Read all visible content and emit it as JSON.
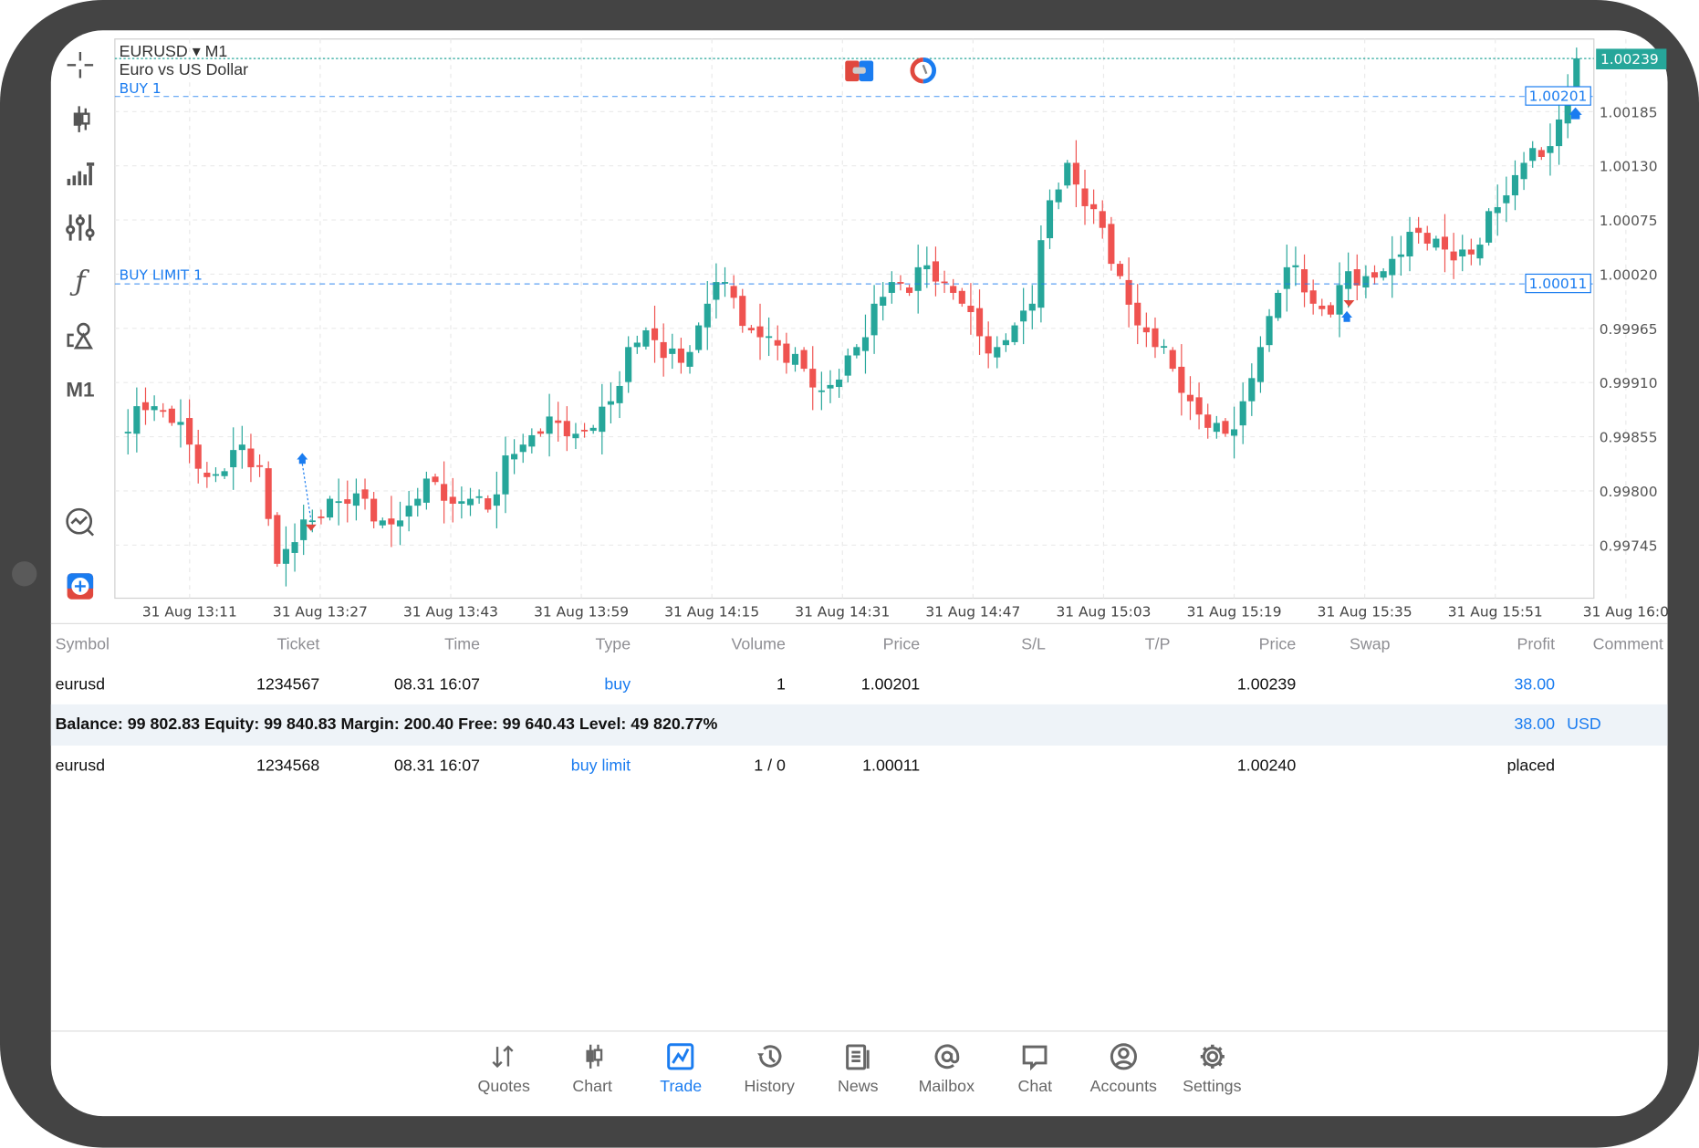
{
  "chart": {
    "symbol": "EURUSD",
    "timeframe": "M1",
    "description": "Euro vs US Dollar",
    "buy_label": "BUY 1",
    "buy_limit_label": "BUY LIMIT 1",
    "current_price": "1.00239",
    "buy_price": "1.00201",
    "buy_limit_price": "1.00011",
    "toolbar": {
      "timeframe_button": "M1"
    },
    "colors": {
      "bull": "#26a69a",
      "bear": "#ef5350",
      "order": "#1a7cf0"
    }
  },
  "chart_data": {
    "type": "candlestick",
    "title": "EURUSD, M1",
    "y_ticks": [
      "1.00185",
      "1.00130",
      "1.00075",
      "1.00020",
      "0.99965",
      "0.99910",
      "0.99855",
      "0.99800",
      "0.99745"
    ],
    "x_ticks": [
      "31 Aug 13:11",
      "31 Aug 13:27",
      "31 Aug 13:43",
      "31 Aug 13:59",
      "31 Aug 14:15",
      "31 Aug 14:31",
      "31 Aug 14:47",
      "31 Aug 15:03",
      "31 Aug 15:19",
      "31 Aug 15:35",
      "31 Aug 15:51",
      "31 Aug 16:0"
    ],
    "ylim": [
      0.997,
      1.0025
    ],
    "close_path": [
      0.99858,
      0.99886,
      0.99886,
      0.99869,
      0.99847,
      0.99814,
      0.9982,
      0.99847,
      0.99825,
      0.99726,
      0.99748,
      0.9977,
      0.99792,
      0.99787,
      0.99792,
      0.9977,
      0.9977,
      0.99792,
      0.99809,
      0.99787,
      0.99792,
      0.99781,
      0.99836,
      0.99847,
      0.99858,
      0.99869,
      0.99858,
      0.99864,
      0.99891,
      0.99946,
      0.99963,
      0.99935,
      0.9993,
      0.99968,
      1.00012,
      0.99996,
      0.99963,
      0.99957,
      0.9993,
      0.99924,
      0.99902,
      0.99913,
      0.99946,
      0.9999,
      1.00012,
      1.00001,
      1.00029,
      1.00012,
      0.9999,
      0.99957,
      0.99946,
      0.99968,
      0.9999,
      1.00095,
      1.00133,
      1.00089,
      1.00067,
      1.00018,
      0.99968,
      0.99946,
      0.99924,
      0.99891,
      0.99864,
      0.99858,
      0.99891,
      0.99946,
      1.00001,
      1.00029,
      0.9999,
      0.99979,
      1.00023,
      1.00018,
      1.00023,
      1.0004,
      1.00062,
      1.00056,
      1.00034,
      1.0004,
      1.00084,
      1.001,
      1.00133,
      1.00139,
      1.00177,
      1.00239
    ]
  },
  "table": {
    "headers": [
      "Symbol",
      "Ticket",
      "Time",
      "Type",
      "Volume",
      "Price",
      "S/L",
      "T/P",
      "Price",
      "Swap",
      "Profit",
      "Comment"
    ],
    "rows": [
      {
        "symbol": "eurusd",
        "ticket": "1234567",
        "time": "08.31 16:07",
        "type": "buy",
        "volume": "1",
        "price": "1.00201",
        "current": "1.00239",
        "profit": "38.00"
      },
      {
        "symbol": "eurusd",
        "ticket": "1234568",
        "time": "08.31 16:07",
        "type": "buy limit",
        "volume": "1 / 0",
        "price": "1.00011",
        "current": "1.00240",
        "profit": "placed"
      }
    ],
    "summary": {
      "text": "Balance: 99 802.83 Equity: 99 840.83 Margin: 200.40 Free: 99 640.43 Level: 49 820.77%",
      "profit": "38.00",
      "currency": "USD"
    }
  },
  "nav": [
    "Quotes",
    "Chart",
    "Trade",
    "History",
    "News",
    "Mailbox",
    "Chat",
    "Accounts",
    "Settings"
  ]
}
